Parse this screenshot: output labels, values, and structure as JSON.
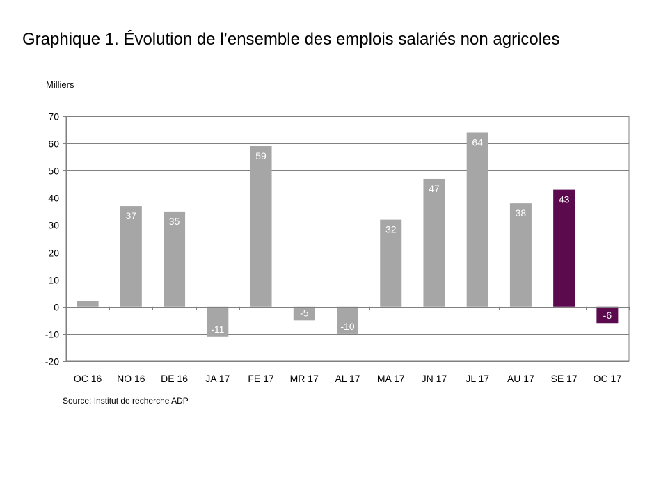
{
  "title": "Graphique 1. Évolution de l’ensemble des emplois salariés non agricoles",
  "unit": "Milliers",
  "source": "Source: Institut de recherche ADP",
  "colors": {
    "default_bar": "#a6a6a6",
    "highlight_bar": "#5c0a4e",
    "gridline": "#808080",
    "axis": "#808080"
  },
  "chart_data": {
    "type": "bar",
    "title": "Graphique 1. Évolution de l’ensemble des emplois salariés non agricoles",
    "xlabel": "",
    "ylabel": "Milliers",
    "ylim": [
      -20,
      70
    ],
    "yticks": [
      -20,
      -10,
      0,
      10,
      20,
      30,
      40,
      50,
      60,
      70
    ],
    "grid": true,
    "legend": "none",
    "categories": [
      "OC 16",
      "NO 16",
      "DE 16",
      "JA 17",
      "FE 17",
      "MR 17",
      "AL 17",
      "MA 17",
      "JN 17",
      "JL 17",
      "AU 17",
      "SE 17",
      "OC 17"
    ],
    "values": [
      2,
      37,
      35,
      -11,
      59,
      -5,
      -10,
      32,
      47,
      64,
      38,
      43,
      -6
    ],
    "data_labels": [
      "",
      "37",
      "35",
      "-11",
      "59",
      "-5",
      "-10",
      "32",
      "47",
      "64",
      "38",
      "43",
      "-6"
    ],
    "highlighted": [
      false,
      false,
      false,
      false,
      false,
      false,
      false,
      false,
      false,
      false,
      false,
      true,
      true
    ]
  }
}
